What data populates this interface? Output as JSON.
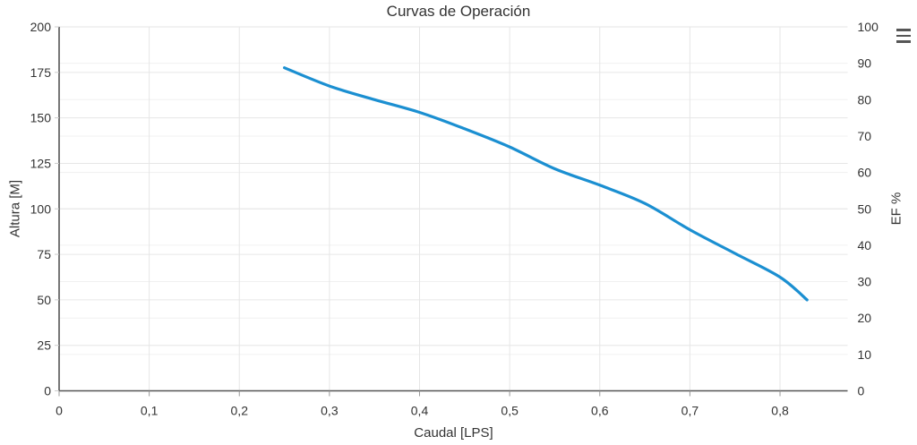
{
  "title": "Curvas de Operación",
  "export_menu": {
    "icon": "hamburger-menu-icon",
    "tooltip": "Chart context menu"
  },
  "chart_data": {
    "type": "line",
    "title": "Curvas de Operación",
    "xlabel": "Caudal [LPS]",
    "ylabel_left": "Altura [M]",
    "ylabel_right": "EF %",
    "xlim": [
      0,
      0.875
    ],
    "ylim_left": [
      0,
      200
    ],
    "ylim_right": [
      0,
      100
    ],
    "grid": true,
    "legend_position": "none",
    "x_ticks": [
      0,
      0.1,
      0.2,
      0.3,
      0.4,
      0.5,
      0.6,
      0.7,
      0.8
    ],
    "x_tick_labels": [
      "0",
      "0,1",
      "0,2",
      "0,3",
      "0,4",
      "0,5",
      "0,6",
      "0,7",
      "0,8"
    ],
    "y_left_ticks": [
      0,
      25,
      50,
      75,
      100,
      125,
      150,
      175,
      200
    ],
    "y_left_tick_labels": [
      "0",
      "25",
      "50",
      "75",
      "100",
      "125",
      "150",
      "175",
      "200"
    ],
    "y_right_ticks": [
      0,
      10,
      20,
      30,
      40,
      50,
      60,
      70,
      80,
      90,
      100
    ],
    "y_right_tick_labels": [
      "0",
      "10",
      "20",
      "30",
      "40",
      "50",
      "60",
      "70",
      "80",
      "90",
      "100"
    ],
    "series": [
      {
        "name": "Altura",
        "axis": "left",
        "color": "#1b8fd1",
        "x": [
          0.25,
          0.3,
          0.35,
          0.4,
          0.45,
          0.5,
          0.55,
          0.6,
          0.65,
          0.7,
          0.75,
          0.8,
          0.83
        ],
        "y": [
          177.5,
          167.5,
          160,
          153,
          144,
          134,
          122,
          113,
          103,
          88.5,
          75.5,
          62.5,
          50
        ]
      }
    ],
    "colors": {
      "text": "#333333",
      "axis_line": "#555555",
      "grid_major": "#e6e6e6",
      "grid_right_axis": "#f0f0f0",
      "tick_mark": "#999999",
      "series_line": "#1b8fd1"
    }
  }
}
